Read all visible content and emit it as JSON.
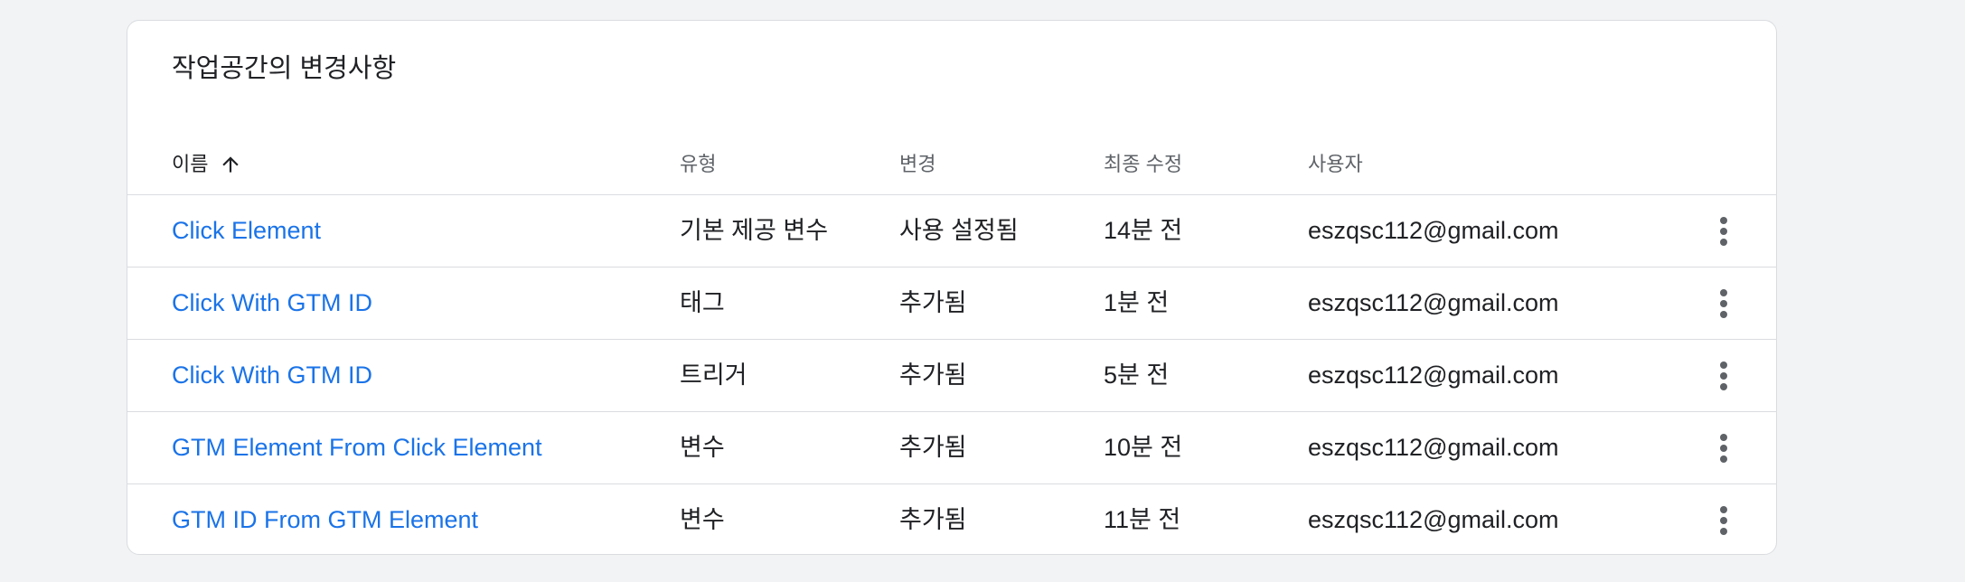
{
  "card": {
    "title": "작업공간의 변경사항"
  },
  "columns": {
    "name": "이름",
    "type": "유형",
    "change": "변경",
    "modified": "최종 수정",
    "user": "사용자"
  },
  "sort": {
    "column": "name",
    "direction": "ascending",
    "icon": "arrow-up-icon"
  },
  "rows": [
    {
      "name": "Click Element",
      "type": "기본 제공 변수",
      "change": "사용 설정됨",
      "modified": "14분 전",
      "user": "eszqsc112@gmail.com"
    },
    {
      "name": "Click With GTM ID",
      "type": "태그",
      "change": "추가됨",
      "modified": "1분 전",
      "user": "eszqsc112@gmail.com"
    },
    {
      "name": "Click With GTM ID",
      "type": "트리거",
      "change": "추가됨",
      "modified": "5분 전",
      "user": "eszqsc112@gmail.com"
    },
    {
      "name": "GTM Element From Click Element",
      "type": "변수",
      "change": "추가됨",
      "modified": "10분 전",
      "user": "eszqsc112@gmail.com"
    },
    {
      "name": "GTM ID From GTM Element",
      "type": "변수",
      "change": "추가됨",
      "modified": "11분 전",
      "user": "eszqsc112@gmail.com"
    }
  ],
  "colors": {
    "link": "#1a73e8",
    "background": "#f1f3f4",
    "border": "#dadce0"
  },
  "icons": {
    "row_menu": "more-vertical-icon"
  }
}
